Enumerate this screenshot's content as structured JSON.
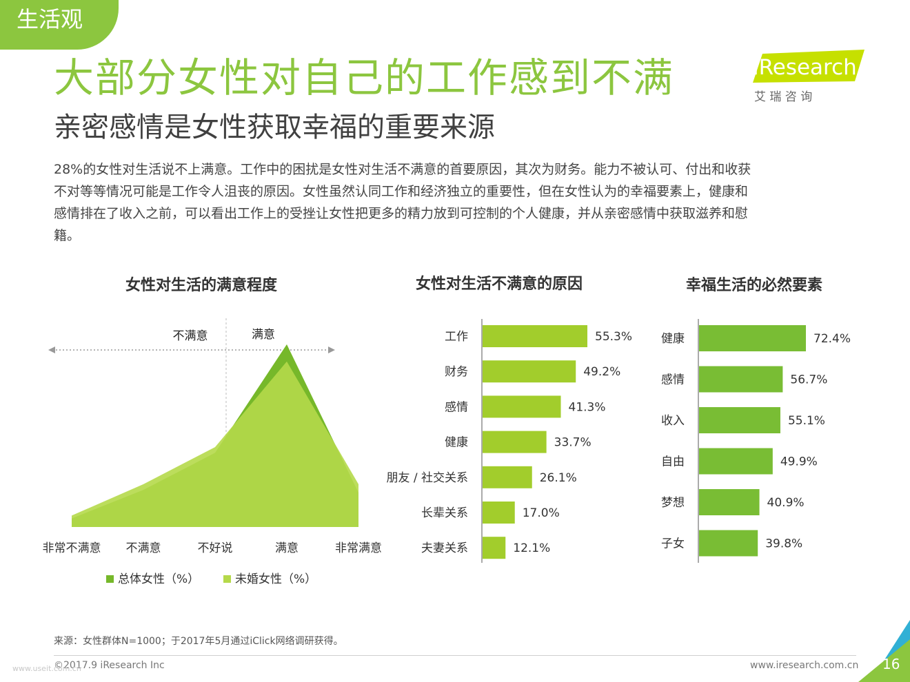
{
  "section_tab": "生活观",
  "title": "大部分女性对自己的工作感到不满",
  "subtitle": "亲密感情是女性获取幸福的重要来源",
  "body_lines": [
    "28%的女性对生活说不上满意。工作中的困扰是女性对生活不满意的首要原因，其次为财务。能力不被认可、付出和收获",
    "不对等等情况可能是工作令人沮丧的原因。女性虽然认同工作和经济独立的重要性，但在女性认为的幸福要素上，健康和",
    "感情排在了收入之前，可以看出工作上的受挫让女性把更多的精力放到可控制的个人健康，并从亲密感情中获取滋养和慰",
    "籍。"
  ],
  "logo": {
    "text": "iResearch",
    "sub": "艾 瑞 咨 询"
  },
  "colors": {
    "accent": "#8cc63f",
    "dark_green": "#76b82a",
    "light_green": "#b5d94a",
    "bar_green": "#a2cd2c",
    "bar_green2": "#79bd34",
    "corner_blue": "#31b0d5"
  },
  "chart_data": [
    {
      "type": "area",
      "title": "女性对生活的满意程度",
      "categories": [
        "非常不满意",
        "不满意",
        "不好说",
        "满意",
        "非常满意"
      ],
      "annotations": [
        "不满意",
        "满意"
      ],
      "series": [
        {
          "name": "总体女性（%）",
          "values": [
            3,
            13,
            26,
            64,
            12
          ]
        },
        {
          "name": "未婚女性（%）",
          "values": [
            4,
            15,
            28,
            58,
            15
          ]
        }
      ],
      "ylim": [
        0,
        70
      ]
    },
    {
      "type": "bar",
      "title": "女性对生活不满意的原因",
      "categories": [
        "工作",
        "财务",
        "感情",
        "健康",
        "朋友 / 社交关系",
        "长辈关系",
        "夫妻关系"
      ],
      "values": [
        55.3,
        49.2,
        41.3,
        33.7,
        26.1,
        17.0,
        12.1
      ],
      "labels": [
        "55.3%",
        "49.2%",
        "41.3%",
        "33.7%",
        "26.1%",
        "17.0%",
        "12.1%"
      ]
    },
    {
      "type": "bar",
      "title": "幸福生活的必然要素",
      "categories": [
        "健康",
        "感情",
        "收入",
        "自由",
        "梦想",
        "子女"
      ],
      "values": [
        72.4,
        56.7,
        55.1,
        49.9,
        40.9,
        39.8
      ],
      "labels": [
        "72.4%",
        "56.7%",
        "55.1%",
        "49.9%",
        "40.9%",
        "39.8%"
      ]
    }
  ],
  "footer": {
    "source": "来源：女性群体N=1000；于2017年5月通过iClick网络调研获得。",
    "copyright": "©2017.9 iResearch Inc",
    "website": "www.iresearch.com.cn",
    "page": "16",
    "watermark": "www.useit.com.cn"
  }
}
